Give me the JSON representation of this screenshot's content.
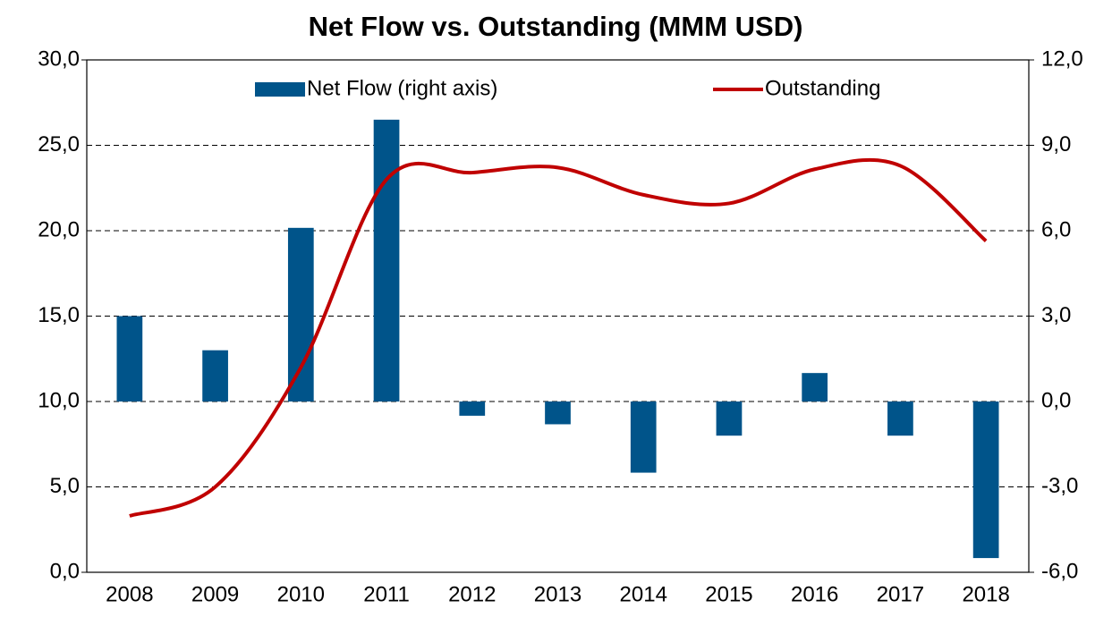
{
  "chart_data": {
    "type": "bar_line",
    "title": "Net Flow vs. Outstanding (MMM USD)",
    "categories": [
      "2008",
      "2009",
      "2010",
      "2011",
      "2012",
      "2013",
      "2014",
      "2015",
      "2016",
      "2017",
      "2018"
    ],
    "series": [
      {
        "name": "Net Flow (right axis)",
        "type": "bar",
        "axis": "y2",
        "color": "#00548a",
        "values": [
          3.0,
          1.8,
          6.1,
          9.9,
          -0.5,
          -0.8,
          -2.5,
          -1.2,
          1.0,
          -1.2,
          -5.5
        ]
      },
      {
        "name": "Outstanding",
        "type": "line",
        "axis": "y",
        "color": "#c00000",
        "values": [
          3.3,
          5.0,
          12.0,
          23.0,
          23.4,
          23.7,
          22.1,
          21.6,
          23.6,
          23.8,
          19.4
        ]
      }
    ],
    "ylim": [
      0,
      30
    ],
    "yticks": [
      {
        "value": 0,
        "label": "0,0"
      },
      {
        "value": 5,
        "label": "5,0"
      },
      {
        "value": 10,
        "label": "10,0"
      },
      {
        "value": 15,
        "label": "15,0"
      },
      {
        "value": 20,
        "label": "20,0"
      },
      {
        "value": 25,
        "label": "25,0"
      },
      {
        "value": 30,
        "label": "30,0"
      }
    ],
    "y2lim": [
      -6,
      12
    ],
    "y2ticks": [
      {
        "value": -6,
        "label": "-6,0"
      },
      {
        "value": -3,
        "label": "-3,0"
      },
      {
        "value": 0,
        "label": "0,0"
      },
      {
        "value": 3,
        "label": "3,0"
      },
      {
        "value": 6,
        "label": "6,0"
      },
      {
        "value": 9,
        "label": "9,0"
      },
      {
        "value": 12,
        "label": "12,0"
      }
    ],
    "grid": true,
    "legend": "top"
  }
}
